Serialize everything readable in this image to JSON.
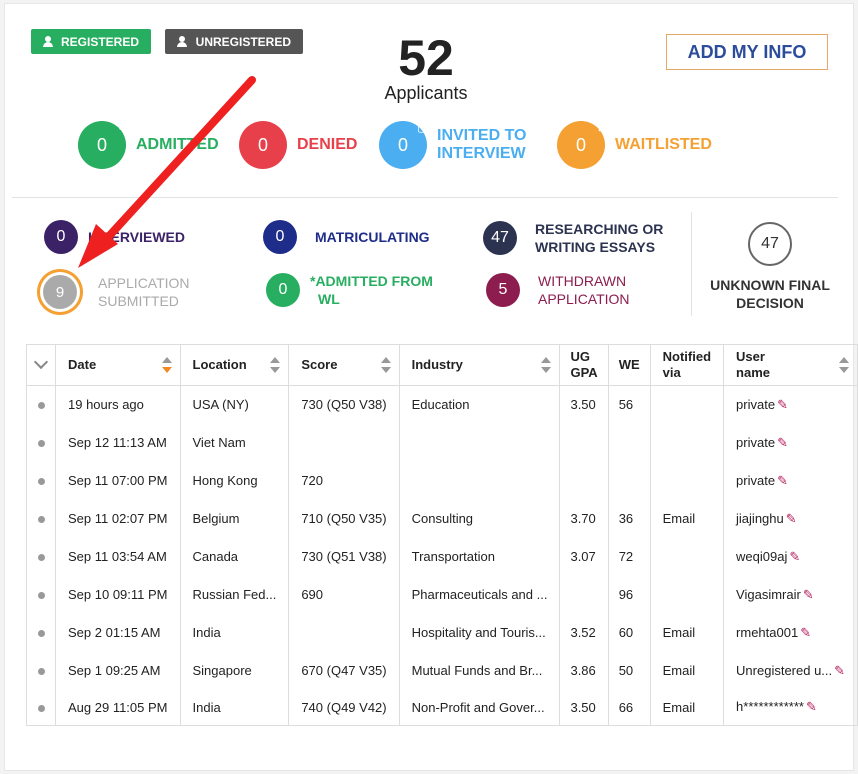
{
  "legend": {
    "registered": "REGISTERED",
    "unregistered": "UNREGISTERED"
  },
  "summary": {
    "count": "52",
    "label": "Applicants"
  },
  "add_button": "ADD MY INFO",
  "top_statuses": [
    {
      "count": "0",
      "label": "ADMITTED",
      "color": "#27ae60",
      "icon": "check-icon"
    },
    {
      "count": "0",
      "label": "DENIED",
      "color": "#e8404a",
      "icon": "x-icon"
    },
    {
      "count": "0",
      "label_line1": "INVITED TO",
      "label_line2": "INTERVIEW",
      "color": "#4aaef0",
      "icon": "chat-icon"
    },
    {
      "count": "0",
      "label": "WAITLISTED",
      "color": "#f5a033",
      "icon": "hourglass-icon"
    }
  ],
  "secondary_statuses": {
    "interviewed": {
      "count": "0",
      "label": "INTERVIEWED",
      "color": "#3b2266"
    },
    "matriculating": {
      "count": "0",
      "label": "MATRICULATING",
      "color": "#1f2d8a"
    },
    "researching": {
      "count": "47",
      "label_line1": "RESEARCHING OR",
      "label_line2": "WRITING ESSAYS",
      "color": "#2c3350"
    },
    "submitted": {
      "count": "9",
      "label_line1": "APPLICATION",
      "label_line2": "SUBMITTED",
      "color": "#aaaaaa"
    },
    "admitted_wl": {
      "count": "0",
      "label_line1": "*ADMITTED FROM",
      "label_line2": "WL",
      "color": "#27ae60"
    },
    "withdrawn": {
      "count": "5",
      "label_line1": "WITHDRAWN",
      "label_line2": "APPLICATION",
      "color": "#8c1d4e"
    }
  },
  "unknown": {
    "count": "47",
    "label_line1": "UNKNOWN FINAL",
    "label_line2": "DECISION"
  },
  "table": {
    "headers": {
      "date": "Date",
      "location": "Location",
      "score": "Score",
      "industry": "Industry",
      "gpa_line1": "UG",
      "gpa_line2": "GPA",
      "we": "WE",
      "notified_line1": "Notified",
      "notified_line2": "via",
      "user_line1": "User",
      "user_line2": "name"
    },
    "rows": [
      {
        "date": "19 hours ago",
        "location": "USA (NY)",
        "score": "730 (Q50 V38)",
        "industry": "Education",
        "gpa": "3.50",
        "we": "56",
        "notified": "",
        "user": "private"
      },
      {
        "date": "Sep 12 11:13 AM",
        "location": "Viet Nam",
        "score": "",
        "industry": "",
        "gpa": "",
        "we": "",
        "notified": "",
        "user": "private"
      },
      {
        "date": "Sep 11 07:00 PM",
        "location": "Hong Kong",
        "score": "720",
        "industry": "",
        "gpa": "",
        "we": "",
        "notified": "",
        "user": "private"
      },
      {
        "date": "Sep 11 02:07 PM",
        "location": "Belgium",
        "score": "710 (Q50 V35)",
        "industry": "Consulting",
        "gpa": "3.70",
        "we": "36",
        "notified": "Email",
        "user": "jiajinghu"
      },
      {
        "date": "Sep 11 03:54 AM",
        "location": "Canada",
        "score": "730 (Q51 V38)",
        "industry": "Transportation",
        "gpa": "3.07",
        "we": "72",
        "notified": "",
        "user": "weqi09aj"
      },
      {
        "date": "Sep 10 09:11 PM",
        "location": "Russian Fed...",
        "score": "690",
        "industry": "Pharmaceuticals and ...",
        "gpa": "",
        "we": "96",
        "notified": "",
        "user": "Vigasimrair"
      },
      {
        "date": "Sep 2 01:15 AM",
        "location": "India",
        "score": "",
        "industry": "Hospitality and Touris...",
        "gpa": "3.52",
        "we": "60",
        "notified": "Email",
        "user": "rmehta001"
      },
      {
        "date": "Sep 1 09:25 AM",
        "location": "Singapore",
        "score": "670 (Q47 V35)",
        "industry": "Mutual Funds and Br...",
        "gpa": "3.86",
        "we": "50",
        "notified": "Email",
        "user": "Unregistered u..."
      },
      {
        "date": "Aug 29 11:05 PM",
        "location": "India",
        "score": "740 (Q49 V42)",
        "industry": "Non-Profit and Gover...",
        "gpa": "3.50",
        "we": "66",
        "notified": "Email",
        "user": "h************"
      }
    ]
  }
}
